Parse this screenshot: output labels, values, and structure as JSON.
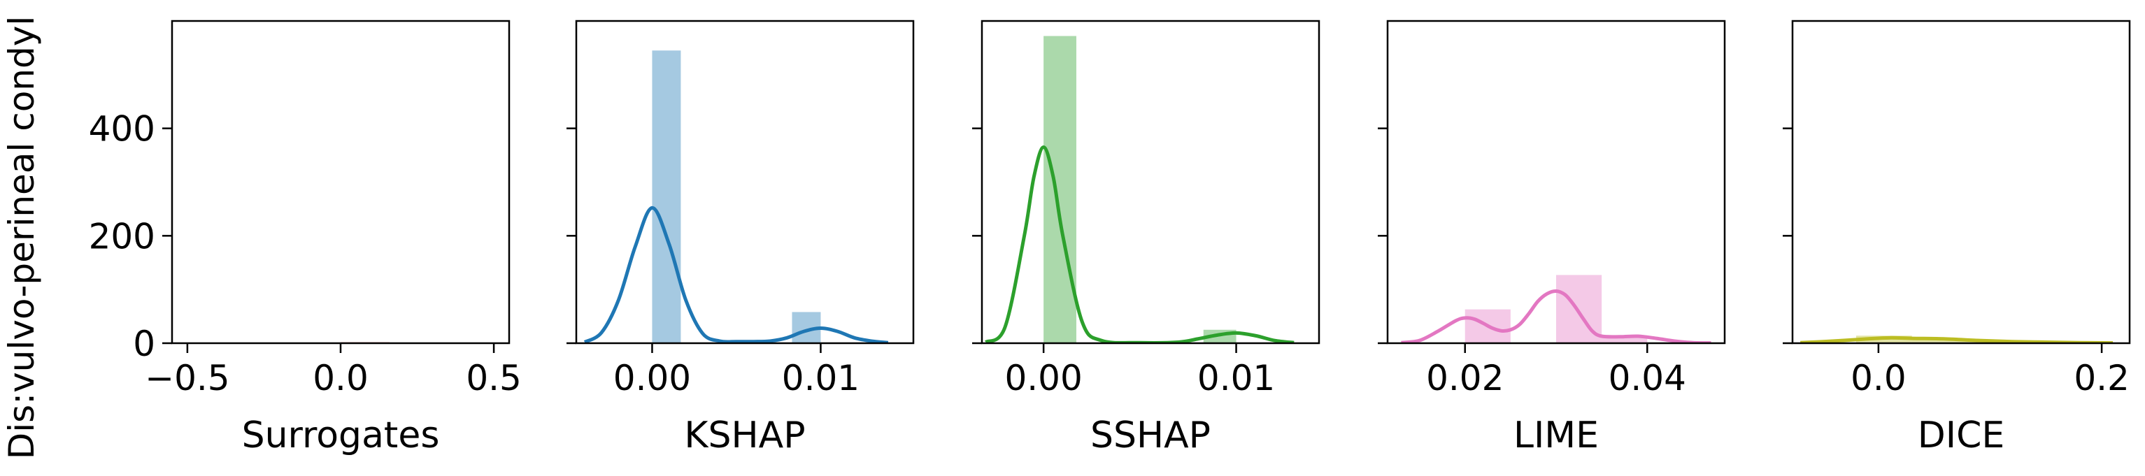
{
  "figure": {
    "ylabel": "Dis:vulvo-perineal condyl",
    "ylim": [
      0,
      600
    ],
    "yticks": [
      0,
      200,
      400
    ]
  },
  "chart_data": [
    {
      "type": "bar",
      "xlabel": "Surrogates",
      "color": "#d62728",
      "xlim": [
        -0.55,
        0.55
      ],
      "xticks": [
        -0.5,
        0.0,
        0.5
      ],
      "tick_labels": [
        "−0.5",
        "0.0",
        "0.5"
      ],
      "bins": [
        {
          "x0": 0.0,
          "x1": 0.16,
          "count": 2
        }
      ],
      "kde": []
    },
    {
      "type": "bar",
      "xlabel": "KSHAP",
      "color": "#1f77b4",
      "xlim": [
        -0.0045,
        0.0155
      ],
      "xticks": [
        0.0,
        0.01
      ],
      "tick_labels": [
        "0.00",
        "0.01"
      ],
      "bins": [
        {
          "x0": 0.0,
          "x1": 0.0017,
          "count": 545
        },
        {
          "x0": 0.0083,
          "x1": 0.01,
          "count": 58
        }
      ],
      "kde": [
        [
          -0.004,
          2
        ],
        [
          -0.003,
          20
        ],
        [
          -0.002,
          80
        ],
        [
          -0.001,
          180
        ],
        [
          0.0,
          252
        ],
        [
          0.001,
          185
        ],
        [
          0.002,
          80
        ],
        [
          0.003,
          18
        ],
        [
          0.004,
          4
        ],
        [
          0.005,
          3
        ],
        [
          0.006,
          3
        ],
        [
          0.007,
          4
        ],
        [
          0.008,
          10
        ],
        [
          0.009,
          22
        ],
        [
          0.01,
          28
        ],
        [
          0.011,
          22
        ],
        [
          0.012,
          10
        ],
        [
          0.013,
          4
        ],
        [
          0.014,
          1
        ]
      ]
    },
    {
      "type": "bar",
      "xlabel": "SSHAP",
      "color": "#2ca02c",
      "xlim": [
        -0.0032,
        0.0143
      ],
      "xticks": [
        0.0,
        0.01
      ],
      "tick_labels": [
        "0.00",
        "0.01"
      ],
      "bins": [
        {
          "x0": 0.0,
          "x1": 0.0017,
          "count": 572
        },
        {
          "x0": 0.0083,
          "x1": 0.01,
          "count": 25
        }
      ],
      "kde": [
        [
          -0.003,
          2
        ],
        [
          -0.002,
          30
        ],
        [
          -0.001,
          200
        ],
        [
          -0.0005,
          310
        ],
        [
          0.0,
          365
        ],
        [
          0.0005,
          310
        ],
        [
          0.001,
          200
        ],
        [
          0.002,
          40
        ],
        [
          0.003,
          5
        ],
        [
          0.005,
          1
        ],
        [
          0.007,
          2
        ],
        [
          0.008,
          8
        ],
        [
          0.009,
          15
        ],
        [
          0.01,
          19
        ],
        [
          0.011,
          14
        ],
        [
          0.012,
          5
        ],
        [
          0.013,
          1
        ]
      ]
    },
    {
      "type": "bar",
      "xlabel": "LIME",
      "color": "#e377c2",
      "xlim": [
        0.0115,
        0.0485
      ],
      "xticks": [
        0.02,
        0.04
      ],
      "tick_labels": [
        "0.02",
        "0.04"
      ],
      "bins": [
        {
          "x0": 0.02,
          "x1": 0.025,
          "count": 63
        },
        {
          "x0": 0.03,
          "x1": 0.035,
          "count": 127
        },
        {
          "x0": 0.035,
          "x1": 0.04,
          "count": 10
        }
      ],
      "kde": [
        [
          0.013,
          1
        ],
        [
          0.015,
          5
        ],
        [
          0.017,
          22
        ],
        [
          0.019,
          42
        ],
        [
          0.02,
          47
        ],
        [
          0.021,
          45
        ],
        [
          0.022,
          37
        ],
        [
          0.023,
          28
        ],
        [
          0.024,
          23
        ],
        [
          0.025,
          25
        ],
        [
          0.026,
          35
        ],
        [
          0.027,
          55
        ],
        [
          0.028,
          78
        ],
        [
          0.029,
          92
        ],
        [
          0.03,
          97
        ],
        [
          0.031,
          90
        ],
        [
          0.032,
          70
        ],
        [
          0.033,
          45
        ],
        [
          0.034,
          22
        ],
        [
          0.035,
          13
        ],
        [
          0.037,
          12
        ],
        [
          0.039,
          13
        ],
        [
          0.041,
          9
        ],
        [
          0.043,
          4
        ],
        [
          0.045,
          1
        ],
        [
          0.047,
          0.5
        ]
      ]
    },
    {
      "type": "bar",
      "xlabel": "DICE",
      "color": "#bcbd22",
      "xlim": [
        -0.077,
        0.225
      ],
      "xticks": [
        0.0,
        0.2
      ],
      "tick_labels": [
        "0.0",
        "0.2"
      ],
      "bins": [
        {
          "x0": -0.02,
          "x1": 0.03,
          "count": 14
        },
        {
          "x0": 0.03,
          "x1": 0.09,
          "count": 8
        },
        {
          "x0": 0.09,
          "x1": 0.14,
          "count": 3
        },
        {
          "x0": 0.14,
          "x1": 0.2,
          "count": 2
        }
      ],
      "kde": [
        [
          -0.07,
          1
        ],
        [
          -0.04,
          4
        ],
        [
          -0.01,
          8
        ],
        [
          0.01,
          10
        ],
        [
          0.03,
          9
        ],
        [
          0.06,
          8
        ],
        [
          0.09,
          5
        ],
        [
          0.12,
          3
        ],
        [
          0.15,
          2
        ],
        [
          0.18,
          1
        ],
        [
          0.21,
          0.5
        ]
      ]
    }
  ]
}
